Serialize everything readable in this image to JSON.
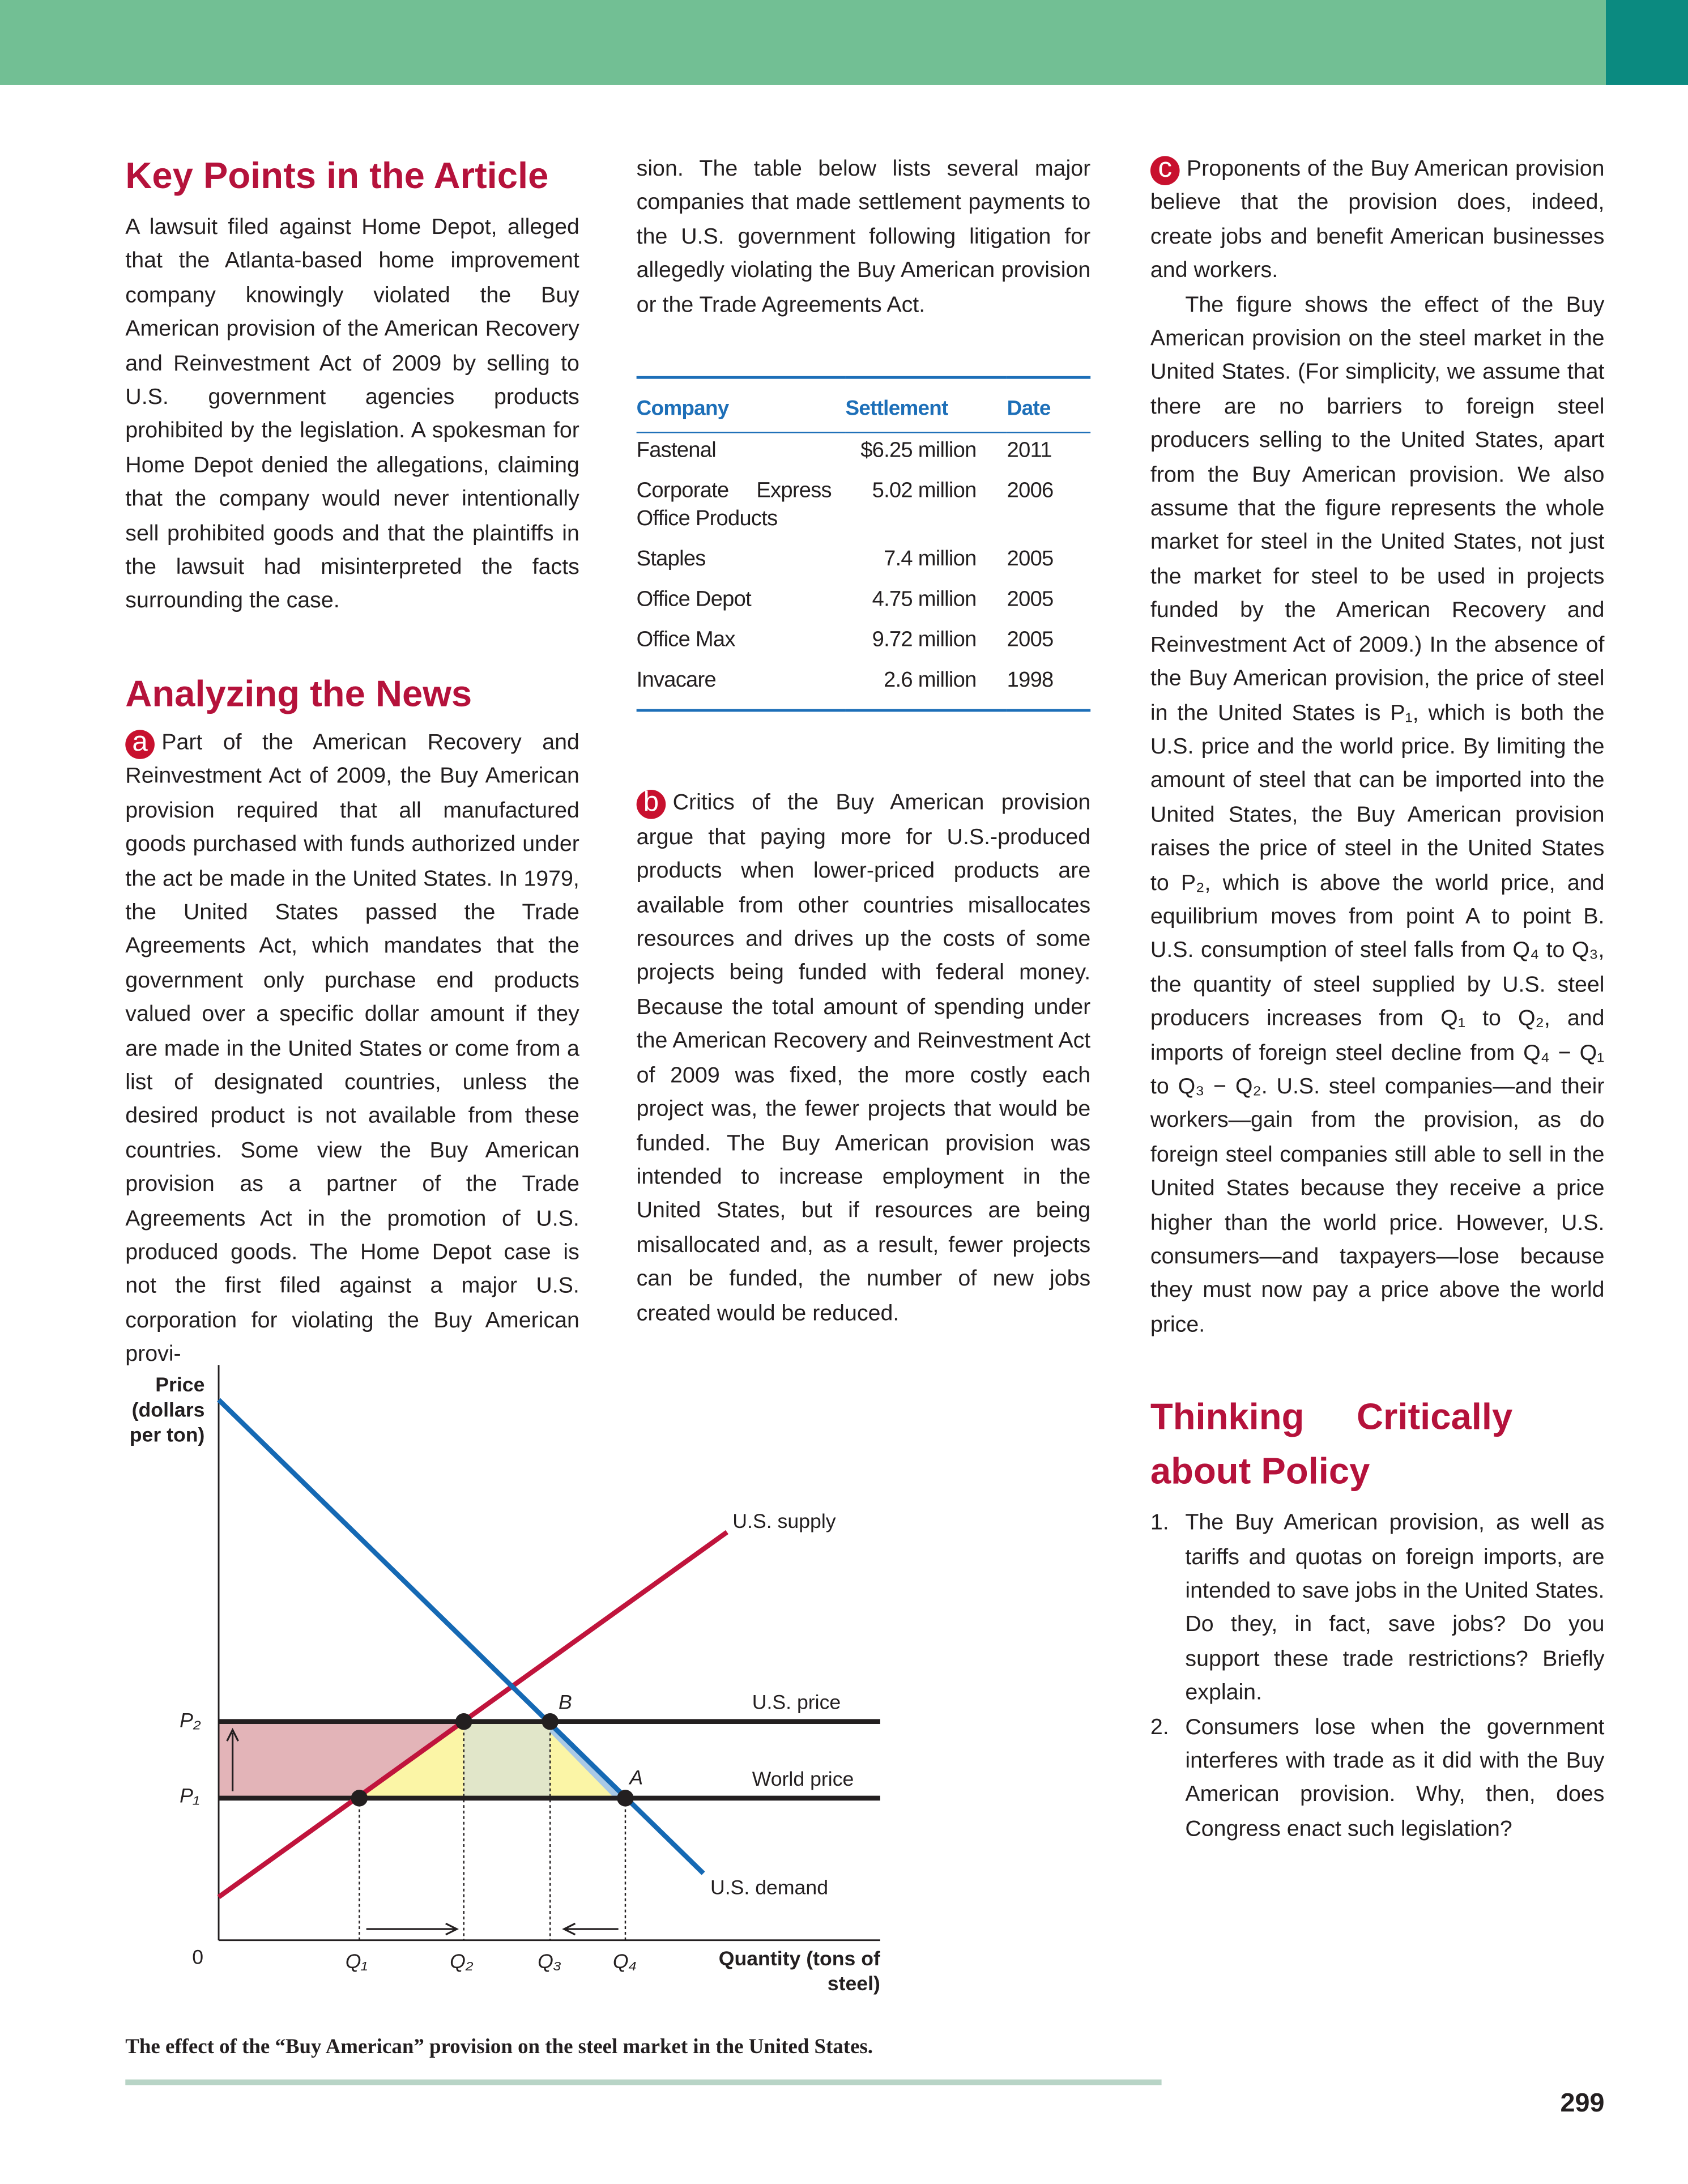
{
  "key_points": {
    "heading": "Key Points in the Article",
    "text": "A lawsuit filed against Home Depot, alleged that the Atlanta-based home improvement company knowingly violated the Buy American provision of the American Recovery and Reinvestment Act of 2009 by selling to U.S. government agencies products prohibited by the legislation. A spokesman for Home Depot denied the allegations, claiming that the company would never intentionally sell prohibited goods and that the plaintiffs in the lawsuit had misinterpreted the facts surrounding the case."
  },
  "analyzing": {
    "heading": "Analyzing the News",
    "marker": "a",
    "text": "Part of the American Recovery and Reinvestment Act of 2009, the Buy American provision required that all manufactured goods purchased with funds authorized under the act be made in the United States. In 1979, the United States passed the Trade Agreements Act, which mandates that the government only purchase end products valued over a specific dollar amount if they are made in the United States or come from a list of designated countries, unless the desired product is not available from these countries. Some view the Buy American provision as a partner of the Trade Agreements Act in the promotion of U.S. produced goods. The Home Depot case is not the first filed against a major U.S. corporation for violating the Buy American provi-",
    "continued": "sion. The table below lists several major companies that made settlement payments to the U.S. government following litigation for allegedly violating the Buy American provision or the Trade Agreements Act."
  },
  "table": {
    "headers": [
      "Company",
      "Settlement",
      "Date"
    ],
    "rows": [
      [
        "Fastenal",
        "$6.25 million",
        "2011"
      ],
      [
        "Corporate Express Office Products",
        "5.02 million",
        "2006"
      ],
      [
        "Staples",
        "7.4 million",
        "2005"
      ],
      [
        "Office Depot",
        "4.75 million",
        "2005"
      ],
      [
        "Office Max",
        "9.72 million",
        "2005"
      ],
      [
        "Invacare",
        "2.6 million",
        "1998"
      ]
    ]
  },
  "critics": {
    "marker": "b",
    "text": "Critics of the Buy American provision argue that paying more for U.S.-produced products when lower-priced products are available from other countries misallocates resources and drives up the costs of some projects being funded with federal money. Because the total amount of spending under the American Recovery and Reinvestment Act of 2009 was fixed, the more costly each project was, the fewer projects that would be funded. The Buy American provision was intended to increase employment in the United States, but if resources are being misallocated and, as a result, fewer projects can be funded, the number of new jobs created would be reduced."
  },
  "proponents": {
    "marker": "c",
    "text": "Proponents of the Buy American provision believe that the provision does, indeed, create jobs and benefit American businesses and workers.",
    "figure_text": "The figure shows the effect of the Buy American provision on the steel market in the United States. (For simplicity, we assume that there are no barriers to foreign steel producers selling to the United States, apart from the Buy American provision. We also assume that the figure represents the whole market for steel in the United States, not just the market for steel to be used in projects funded by the American Recovery and Reinvestment Act of 2009.) In the absence of the Buy American provision, the price of steel in the United States is P₁, which is both the U.S. price and the world price. By limiting the amount of steel that can be imported into the United States, the Buy American provision raises the price of steel in the United States to P₂, which is above the world price, and equilibrium moves from point A to point B. U.S. consumption of steel falls from Q₄ to Q₃, the quantity of steel supplied by U.S. steel producers increases from Q₁ to Q₂, and imports of foreign steel decline from Q₄ − Q₁ to Q₃ − Q₂. U.S. steel companies—and their workers—gain from the provision, as do foreign steel companies still able to sell in the United States because they receive a price higher than the world price. However, U.S. consumers—and taxpayers—lose because they must now pay a price above the world price."
  },
  "thinking": {
    "heading": "Thinking Critically about Policy",
    "items": [
      {
        "number": "1.",
        "text": "The Buy American provision, as well as tariffs and quotas on foreign imports, are intended to save jobs in the United States. Do they, in fact, save jobs? Do you support these trade restrictions? Briefly explain."
      },
      {
        "number": "2.",
        "text": "Consumers lose when the government interferes with trade as it did with the Buy American provision. Why, then, does Congress enact such legislation?"
      }
    ]
  },
  "figure": {
    "y_axis_label": "Price (dollars per ton)",
    "x_axis_label": "Quantity (tons of steel)",
    "origin": "0",
    "price_labels": [
      "P₂",
      "P₁"
    ],
    "quantity_labels": [
      "Q₁",
      "Q₂",
      "Q₃",
      "Q₄"
    ],
    "point_labels": [
      "B",
      "A"
    ],
    "curve_labels": [
      "U.S. supply",
      "U.S. price",
      "World price",
      "U.S. demand"
    ],
    "caption": "The effect of the “Buy American” provision on the steel market in the United States."
  },
  "page_number": "299"
}
